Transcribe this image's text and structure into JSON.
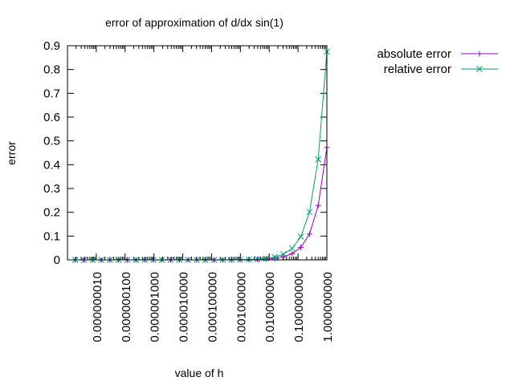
{
  "chart_data": {
    "type": "line",
    "title": "error of approximation of d/dx sin(1)",
    "xlabel": "value of h",
    "ylabel": "error",
    "x_scale": "log",
    "xlim": [
      1e-09,
      1
    ],
    "ylim": [
      0,
      0.9
    ],
    "grid": false,
    "legend_position": "top-right",
    "x_ticks": [
      {
        "value": 1e-08,
        "label": "0.000000010"
      },
      {
        "value": 1e-07,
        "label": "0.000000100"
      },
      {
        "value": 1e-06,
        "label": "0.000001000"
      },
      {
        "value": 1e-05,
        "label": "0.000010000"
      },
      {
        "value": 0.0001,
        "label": "0.000100000"
      },
      {
        "value": 0.001,
        "label": "0.001000000"
      },
      {
        "value": 0.01,
        "label": "0.010000000"
      },
      {
        "value": 0.1,
        "label": "0.100000000"
      },
      {
        "value": 1,
        "label": "1.000000000"
      }
    ],
    "y_ticks": [
      {
        "value": 0,
        "label": "0"
      },
      {
        "value": 0.1,
        "label": "0.1"
      },
      {
        "value": 0.2,
        "label": "0.2"
      },
      {
        "value": 0.3,
        "label": "0.3"
      },
      {
        "value": 0.4,
        "label": "0.4"
      },
      {
        "value": 0.5,
        "label": "0.5"
      },
      {
        "value": 0.6,
        "label": "0.6"
      },
      {
        "value": 0.7,
        "label": "0.7"
      },
      {
        "value": 0.8,
        "label": "0.8"
      },
      {
        "value": 0.9,
        "label": "0.9"
      }
    ],
    "x": [
      1,
      0.5,
      0.25,
      0.125,
      0.0625,
      0.03125,
      0.015625,
      0.0078125,
      0.00390625,
      0.001953125,
      0.0009765625,
      0.00048828125,
      0.000244140625,
      0.0001220703125,
      6.103515625e-05,
      3.0517578125e-05,
      1.52587890625e-05,
      7.62939453125e-06,
      3.814697265625e-06,
      1.9073486328125e-06,
      9.5367431640625e-07,
      4.76837158203125e-07,
      2.384185791015625e-07,
      1.1920928955078125e-07,
      5.960464477539063e-08,
      2.9802322387695312e-08,
      1.4901161193847656e-08,
      7.450580596923828e-09,
      3.725290298461914e-09,
      1.862645149230957e-09
    ],
    "series": [
      {
        "name": "absolute error",
        "color": "#9400d3",
        "marker": "plus",
        "values": [
          0.4725,
          0.2282,
          0.1087,
          0.0528,
          0.0261,
          0.013,
          0.0065,
          0.0033,
          0.0016,
          0.0008,
          0.0004,
          0.0002,
          0.0001,
          5e-05,
          3e-05,
          1e-05,
          6e-06,
          3e-06,
          1.6e-06,
          8e-07,
          4e-07,
          2e-07,
          1e-07,
          5e-08,
          3e-08,
          1e-08,
          1e-08,
          0,
          0,
          0
        ]
      },
      {
        "name": "relative error",
        "color": "#009e73",
        "marker": "cross",
        "values": [
          0.8746,
          0.4223,
          0.2012,
          0.0977,
          0.0483,
          0.024,
          0.0119,
          0.006,
          0.003,
          0.0015,
          0.0007,
          0.0004,
          0.0002,
          9e-05,
          5e-05,
          2e-05,
          1e-05,
          6e-06,
          3e-06,
          1.5e-06,
          7e-07,
          4e-07,
          2e-07,
          1e-07,
          5e-08,
          2e-08,
          1e-08,
          0,
          0,
          0
        ]
      }
    ]
  }
}
